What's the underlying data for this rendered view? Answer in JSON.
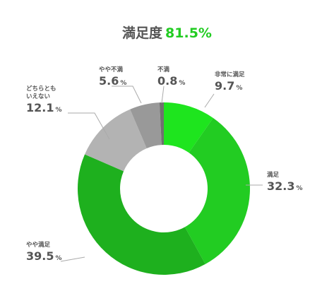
{
  "title": {
    "label": "満足度",
    "value": "81.5%"
  },
  "chart_data": {
    "type": "pie",
    "donut": true,
    "title": "満足度 81.5%",
    "categories": [
      "非常に満足",
      "満足",
      "やや満足",
      "どちらともいえない",
      "やや不満",
      "不満"
    ],
    "values": [
      9.7,
      32.3,
      39.5,
      12.1,
      5.6,
      0.8
    ],
    "unit": "%",
    "colors": [
      "#1ee51e",
      "#22cc22",
      "#1eb01e",
      "#b3b3b3",
      "#999999",
      "#707070"
    ],
    "start_angle": "12 o'clock, clockwise"
  },
  "labels": [
    {
      "name": "非常に満足",
      "value": "9.7",
      "unit": "%"
    },
    {
      "name": "満足",
      "value": "32.3",
      "unit": "%"
    },
    {
      "name": "やや満足",
      "value": "39.5",
      "unit": "%"
    },
    {
      "name_lines": [
        "どちらとも",
        "いえない"
      ],
      "value": "12.1",
      "unit": "%"
    },
    {
      "name": "やや不満",
      "value": "5.6",
      "unit": "%"
    },
    {
      "name": "不満",
      "value": "0.8",
      "unit": "%"
    }
  ]
}
